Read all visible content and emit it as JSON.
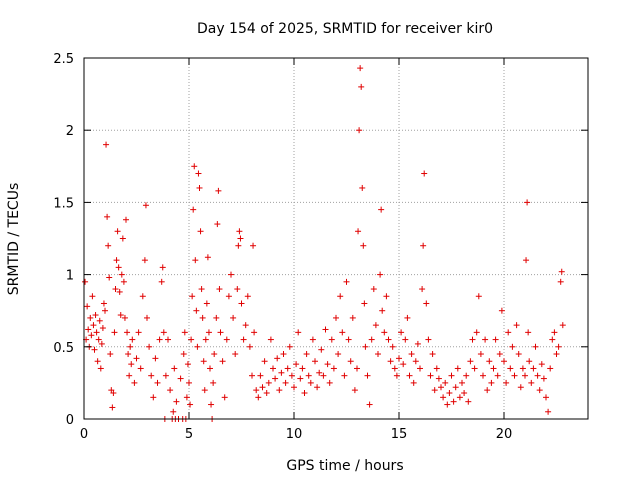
{
  "chart_data": {
    "type": "scatter",
    "title": "Day 154 of 2025, SRMTID for receiver kir0",
    "xlabel": "GPS time / hours",
    "ylabel": "SRMTID / TECUs",
    "xlim": [
      0,
      24
    ],
    "ylim": [
      0,
      2.5
    ],
    "x_ticks": [
      0,
      5,
      10,
      15,
      20
    ],
    "x_tick_labels": [
      "0",
      "5",
      "10",
      "15",
      "20"
    ],
    "y_ticks": [
      0,
      0.5,
      1,
      1.5,
      2,
      2.5
    ],
    "y_tick_labels": [
      "0",
      "0.5",
      "1",
      "1.5",
      "2",
      "2.5"
    ],
    "grid": true,
    "marker": "+",
    "color": "#e00000",
    "series": [
      {
        "name": "SRMTID",
        "points": [
          [
            0.05,
            0.95
          ],
          [
            0.1,
            0.55
          ],
          [
            0.15,
            0.78
          ],
          [
            0.2,
            0.62
          ],
          [
            0.25,
            0.5
          ],
          [
            0.3,
            0.7
          ],
          [
            0.35,
            0.58
          ],
          [
            0.4,
            0.85
          ],
          [
            0.45,
            0.65
          ],
          [
            0.5,
            0.48
          ],
          [
            0.55,
            0.72
          ],
          [
            0.6,
            0.6
          ],
          [
            0.65,
            0.4
          ],
          [
            0.7,
            0.55
          ],
          [
            0.75,
            0.68
          ],
          [
            0.8,
            0.35
          ],
          [
            0.85,
            0.52
          ],
          [
            0.9,
            0.63
          ],
          [
            0.95,
            0.8
          ],
          [
            1.0,
            0.75
          ],
          [
            1.05,
            1.9
          ],
          [
            1.1,
            1.4
          ],
          [
            1.15,
            1.2
          ],
          [
            1.2,
            0.98
          ],
          [
            1.25,
            0.45
          ],
          [
            1.3,
            0.2
          ],
          [
            1.35,
            0.08
          ],
          [
            1.4,
            0.18
          ],
          [
            1.45,
            0.6
          ],
          [
            1.5,
            0.9
          ],
          [
            1.55,
            1.1
          ],
          [
            1.6,
            1.3
          ],
          [
            1.65,
            1.05
          ],
          [
            1.7,
            0.88
          ],
          [
            1.75,
            0.72
          ],
          [
            1.8,
            1.0
          ],
          [
            1.85,
            1.25
          ],
          [
            1.9,
            0.95
          ],
          [
            1.95,
            0.7
          ],
          [
            2.0,
            1.38
          ],
          [
            2.05,
            0.6
          ],
          [
            2.1,
            0.45
          ],
          [
            2.15,
            0.3
          ],
          [
            2.2,
            0.5
          ],
          [
            2.25,
            0.38
          ],
          [
            2.3,
            0.55
          ],
          [
            2.4,
            0.25
          ],
          [
            2.5,
            0.42
          ],
          [
            2.6,
            0.6
          ],
          [
            2.7,
            0.35
          ],
          [
            2.8,
            0.85
          ],
          [
            2.9,
            1.1
          ],
          [
            2.95,
            1.48
          ],
          [
            3.0,
            0.7
          ],
          [
            3.1,
            0.5
          ],
          [
            3.2,
            0.3
          ],
          [
            3.3,
            0.15
          ],
          [
            3.4,
            0.42
          ],
          [
            3.5,
            0.25
          ],
          [
            3.6,
            0.55
          ],
          [
            3.7,
            0.95
          ],
          [
            3.75,
            1.05
          ],
          [
            3.8,
            0.6
          ],
          [
            3.85,
            0.0
          ],
          [
            3.9,
            0.3
          ],
          [
            4.0,
            0.55
          ],
          [
            4.1,
            0.2
          ],
          [
            4.2,
            0.0
          ],
          [
            4.25,
            0.05
          ],
          [
            4.3,
            0.35
          ],
          [
            4.35,
            0.0
          ],
          [
            4.4,
            0.12
          ],
          [
            4.5,
            0.0
          ],
          [
            4.6,
            0.28
          ],
          [
            4.7,
            0.0
          ],
          [
            4.75,
            0.45
          ],
          [
            4.8,
            0.6
          ],
          [
            4.85,
            0.0
          ],
          [
            4.9,
            0.15
          ],
          [
            4.95,
            0.38
          ],
          [
            5.0,
            0.25
          ],
          [
            5.05,
            0.1
          ],
          [
            5.1,
            0.55
          ],
          [
            5.15,
            0.85
          ],
          [
            5.2,
            1.45
          ],
          [
            5.25,
            1.75
          ],
          [
            5.3,
            1.1
          ],
          [
            5.35,
            0.75
          ],
          [
            5.4,
            0.5
          ],
          [
            5.45,
            1.7
          ],
          [
            5.5,
            1.6
          ],
          [
            5.55,
            1.3
          ],
          [
            5.6,
            0.9
          ],
          [
            5.65,
            0.7
          ],
          [
            5.7,
            0.4
          ],
          [
            5.75,
            0.2
          ],
          [
            5.8,
            0.55
          ],
          [
            5.85,
            0.8
          ],
          [
            5.9,
            1.12
          ],
          [
            5.95,
            0.6
          ],
          [
            6.0,
            0.35
          ],
          [
            6.05,
            0.1
          ],
          [
            6.1,
            0.0
          ],
          [
            6.15,
            0.25
          ],
          [
            6.2,
            0.45
          ],
          [
            6.3,
            0.7
          ],
          [
            6.35,
            1.35
          ],
          [
            6.4,
            1.58
          ],
          [
            6.45,
            0.9
          ],
          [
            6.5,
            0.6
          ],
          [
            6.6,
            0.4
          ],
          [
            6.7,
            0.15
          ],
          [
            6.8,
            0.55
          ],
          [
            6.9,
            0.85
          ],
          [
            7.0,
            1.0
          ],
          [
            7.1,
            0.7
          ],
          [
            7.2,
            0.45
          ],
          [
            7.3,
            0.9
          ],
          [
            7.35,
            1.2
          ],
          [
            7.4,
            1.3
          ],
          [
            7.45,
            1.25
          ],
          [
            7.5,
            0.8
          ],
          [
            7.6,
            0.55
          ],
          [
            7.7,
            0.65
          ],
          [
            7.8,
            0.85
          ],
          [
            7.9,
            0.5
          ],
          [
            8.0,
            0.3
          ],
          [
            8.05,
            1.2
          ],
          [
            8.1,
            0.6
          ],
          [
            8.2,
            0.2
          ],
          [
            8.3,
            0.15
          ],
          [
            8.4,
            0.3
          ],
          [
            8.5,
            0.22
          ],
          [
            8.6,
            0.4
          ],
          [
            8.7,
            0.18
          ],
          [
            8.8,
            0.25
          ],
          [
            8.9,
            0.55
          ],
          [
            9.0,
            0.35
          ],
          [
            9.1,
            0.28
          ],
          [
            9.2,
            0.42
          ],
          [
            9.3,
            0.2
          ],
          [
            9.4,
            0.32
          ],
          [
            9.5,
            0.45
          ],
          [
            9.6,
            0.25
          ],
          [
            9.7,
            0.35
          ],
          [
            9.8,
            0.5
          ],
          [
            9.9,
            0.3
          ],
          [
            10.0,
            0.22
          ],
          [
            10.1,
            0.38
          ],
          [
            10.2,
            0.6
          ],
          [
            10.3,
            0.28
          ],
          [
            10.4,
            0.35
          ],
          [
            10.5,
            0.18
          ],
          [
            10.6,
            0.45
          ],
          [
            10.7,
            0.3
          ],
          [
            10.8,
            0.25
          ],
          [
            10.9,
            0.55
          ],
          [
            11.0,
            0.4
          ],
          [
            11.1,
            0.22
          ],
          [
            11.2,
            0.32
          ],
          [
            11.3,
            0.48
          ],
          [
            11.4,
            0.3
          ],
          [
            11.5,
            0.62
          ],
          [
            11.6,
            0.38
          ],
          [
            11.7,
            0.25
          ],
          [
            11.8,
            0.55
          ],
          [
            11.9,
            0.35
          ],
          [
            12.0,
            0.7
          ],
          [
            12.1,
            0.45
          ],
          [
            12.2,
            0.85
          ],
          [
            12.3,
            0.6
          ],
          [
            12.4,
            0.3
          ],
          [
            12.5,
            0.95
          ],
          [
            12.6,
            0.55
          ],
          [
            12.7,
            0.4
          ],
          [
            12.8,
            0.7
          ],
          [
            12.9,
            0.2
          ],
          [
            13.0,
            0.35
          ],
          [
            13.05,
            1.3
          ],
          [
            13.1,
            2.0
          ],
          [
            13.15,
            2.43
          ],
          [
            13.2,
            2.3
          ],
          [
            13.25,
            1.6
          ],
          [
            13.3,
            1.2
          ],
          [
            13.35,
            0.8
          ],
          [
            13.4,
            0.5
          ],
          [
            13.5,
            0.3
          ],
          [
            13.6,
            0.1
          ],
          [
            13.7,
            0.55
          ],
          [
            13.8,
            0.9
          ],
          [
            13.9,
            0.65
          ],
          [
            14.0,
            0.45
          ],
          [
            14.1,
            1.0
          ],
          [
            14.15,
            1.45
          ],
          [
            14.2,
            0.75
          ],
          [
            14.3,
            0.6
          ],
          [
            14.4,
            0.85
          ],
          [
            14.5,
            0.55
          ],
          [
            14.6,
            0.4
          ],
          [
            14.7,
            0.5
          ],
          [
            14.8,
            0.35
          ],
          [
            14.9,
            0.3
          ],
          [
            15.0,
            0.42
          ],
          [
            15.1,
            0.6
          ],
          [
            15.2,
            0.38
          ],
          [
            15.3,
            0.55
          ],
          [
            15.4,
            0.7
          ],
          [
            15.5,
            0.3
          ],
          [
            15.6,
            0.45
          ],
          [
            15.7,
            0.25
          ],
          [
            15.8,
            0.4
          ],
          [
            15.9,
            0.52
          ],
          [
            16.0,
            0.35
          ],
          [
            16.1,
            0.9
          ],
          [
            16.15,
            1.2
          ],
          [
            16.2,
            1.7
          ],
          [
            16.3,
            0.8
          ],
          [
            16.4,
            0.55
          ],
          [
            16.5,
            0.3
          ],
          [
            16.6,
            0.45
          ],
          [
            16.7,
            0.2
          ],
          [
            16.8,
            0.35
          ],
          [
            16.9,
            0.28
          ],
          [
            17.0,
            0.22
          ],
          [
            17.1,
            0.15
          ],
          [
            17.2,
            0.25
          ],
          [
            17.3,
            0.1
          ],
          [
            17.4,
            0.18
          ],
          [
            17.5,
            0.3
          ],
          [
            17.6,
            0.12
          ],
          [
            17.7,
            0.22
          ],
          [
            17.8,
            0.35
          ],
          [
            17.9,
            0.15
          ],
          [
            18.0,
            0.25
          ],
          [
            18.1,
            0.18
          ],
          [
            18.2,
            0.3
          ],
          [
            18.3,
            0.12
          ],
          [
            18.4,
            0.4
          ],
          [
            18.5,
            0.55
          ],
          [
            18.6,
            0.35
          ],
          [
            18.7,
            0.6
          ],
          [
            18.8,
            0.85
          ],
          [
            18.9,
            0.45
          ],
          [
            19.0,
            0.3
          ],
          [
            19.1,
            0.55
          ],
          [
            19.2,
            0.2
          ],
          [
            19.3,
            0.4
          ],
          [
            19.4,
            0.25
          ],
          [
            19.5,
            0.35
          ],
          [
            19.6,
            0.55
          ],
          [
            19.7,
            0.3
          ],
          [
            19.8,
            0.45
          ],
          [
            19.9,
            0.75
          ],
          [
            20.0,
            0.4
          ],
          [
            20.1,
            0.25
          ],
          [
            20.2,
            0.6
          ],
          [
            20.3,
            0.35
          ],
          [
            20.4,
            0.5
          ],
          [
            20.5,
            0.3
          ],
          [
            20.6,
            0.65
          ],
          [
            20.7,
            0.45
          ],
          [
            20.8,
            0.22
          ],
          [
            20.9,
            0.35
          ],
          [
            21.0,
            0.3
          ],
          [
            21.05,
            1.1
          ],
          [
            21.1,
            1.5
          ],
          [
            21.15,
            0.6
          ],
          [
            21.2,
            0.4
          ],
          [
            21.3,
            0.25
          ],
          [
            21.4,
            0.35
          ],
          [
            21.5,
            0.5
          ],
          [
            21.6,
            0.3
          ],
          [
            21.7,
            0.2
          ],
          [
            21.8,
            0.38
          ],
          [
            21.9,
            0.28
          ],
          [
            22.0,
            0.15
          ],
          [
            22.1,
            0.05
          ],
          [
            22.2,
            0.35
          ],
          [
            22.3,
            0.55
          ],
          [
            22.4,
            0.6
          ],
          [
            22.5,
            0.45
          ],
          [
            22.6,
            0.5
          ],
          [
            22.7,
            0.95
          ],
          [
            22.75,
            1.02
          ],
          [
            22.8,
            0.65
          ]
        ]
      }
    ]
  }
}
